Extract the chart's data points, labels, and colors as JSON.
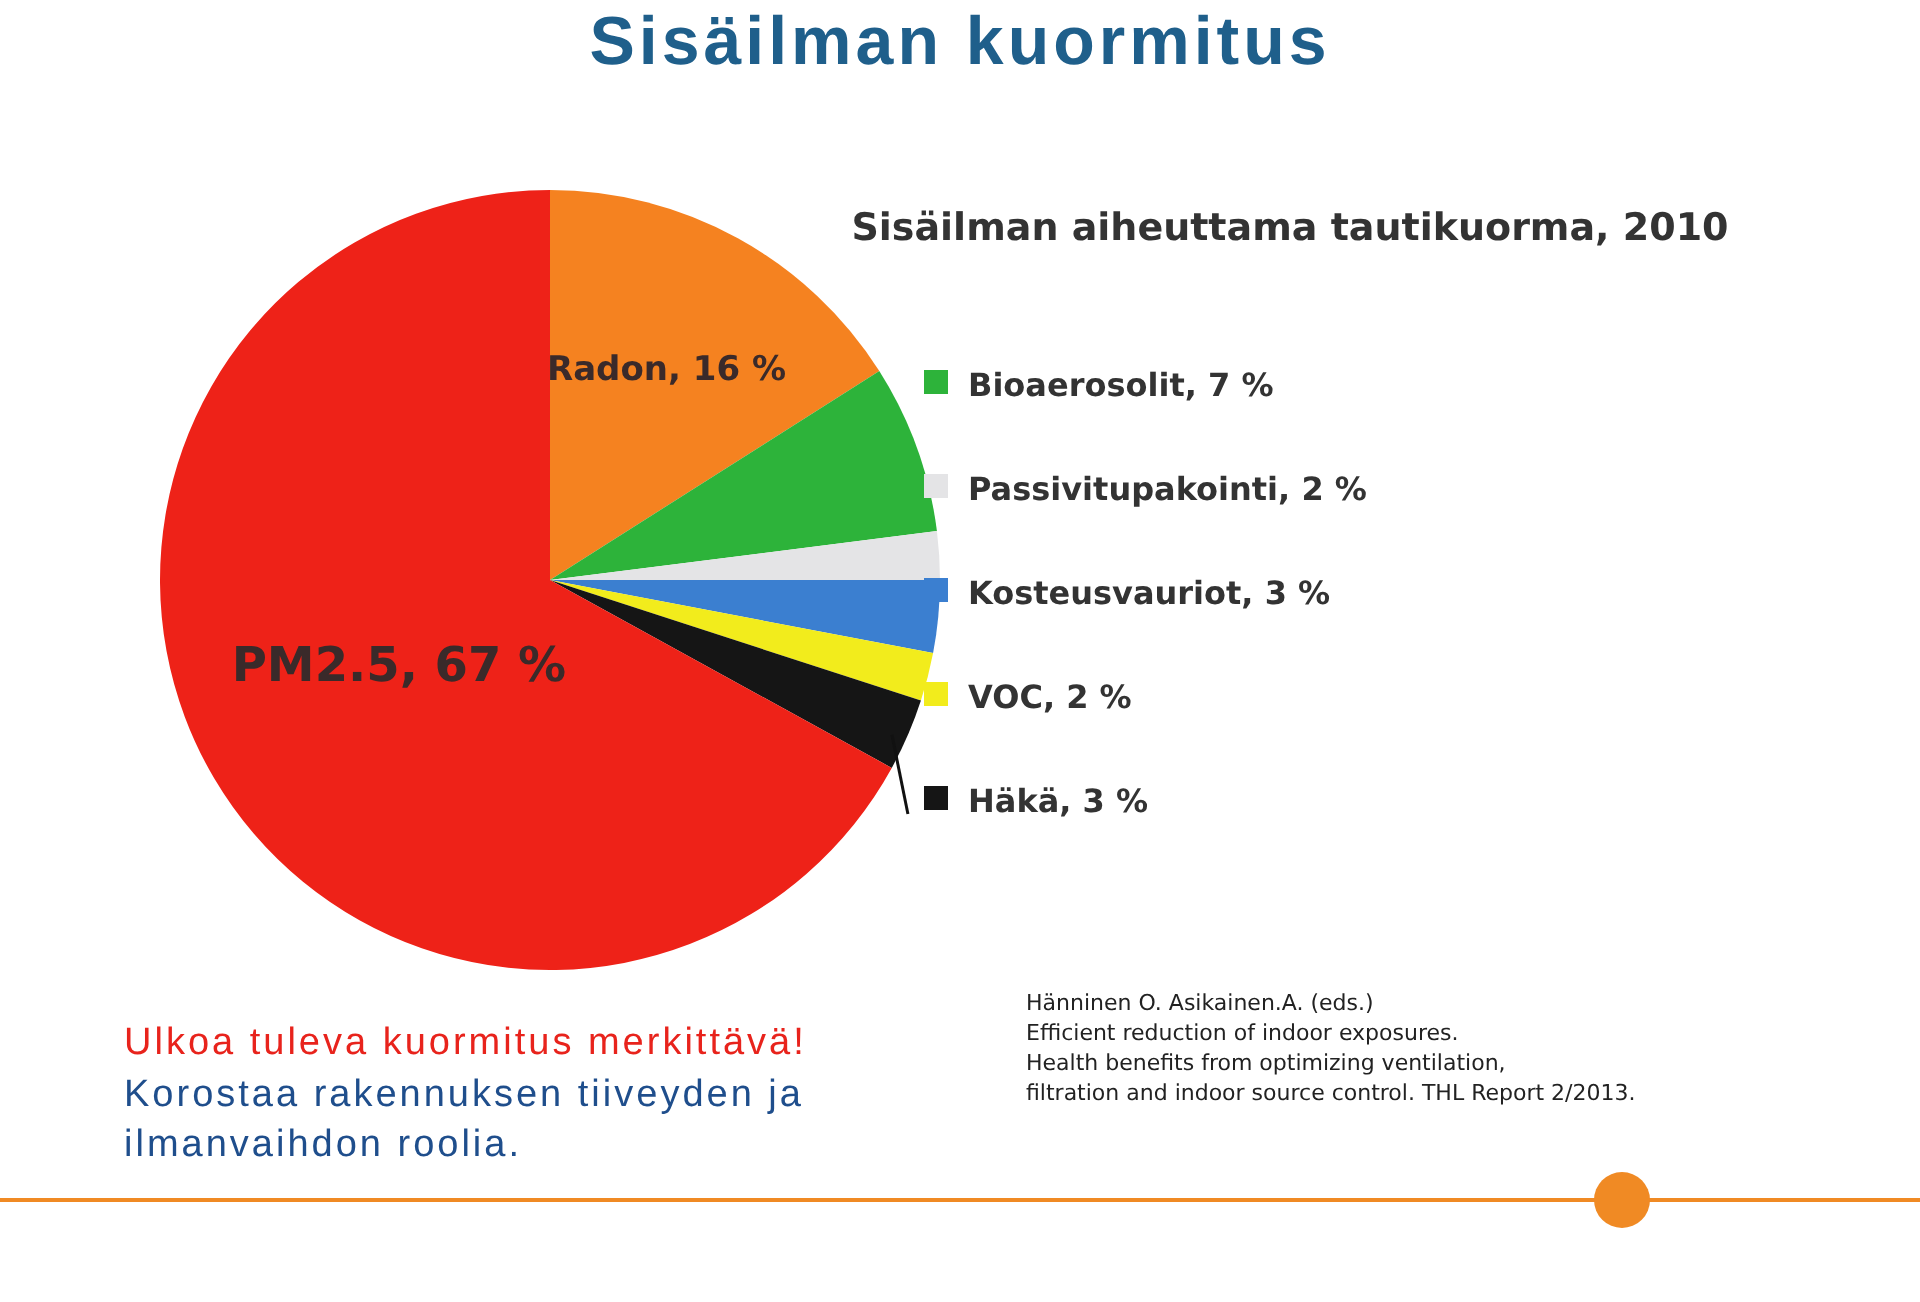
{
  "chart_data": {
    "type": "pie",
    "title": "Sisäilman kuormitus",
    "subtitle": "Sisäilman aiheuttama tautikuorma, 2010",
    "categories": [
      "Radon, 16 %",
      "Bioaerosolit, 7 %",
      "Passivitupakointi, 2 %",
      "Kosteusvauriot, 3 %",
      "VOC, 2 %",
      "Häkä, 3 %",
      "PM2.5, 67 %"
    ],
    "values": [
      16,
      7,
      2,
      3,
      2,
      3,
      67
    ],
    "legend": "right",
    "colors": [
      "#f58220",
      "#2db33a",
      "#e4e4e6",
      "#3b7fd0",
      "#f2ec1c",
      "#151515",
      "#ee2218"
    ],
    "annotations": [
      "Ulkoa tuleva kuormitus merkittävä!",
      "Korostaa rakennuksen tiiveyden ja\nilmanvaihdon roolia.",
      "Hänninen O. Asikainen.A. (eds.)\nEfficient reduction of indoor exposures.\nHealth benefits from optimizing ventilation,\nfiltration and indoor source control. THL Report 2/2013."
    ]
  }
}
